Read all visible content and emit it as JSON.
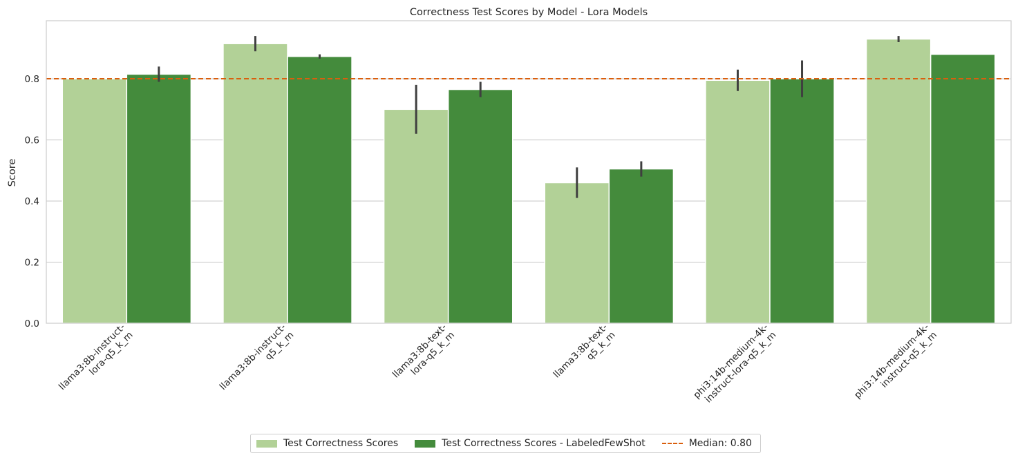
{
  "chart_data": {
    "type": "bar",
    "title": "Correctness Test Scores by Model - Lora Models",
    "xlabel": "",
    "ylabel": "Score",
    "ylim": [
      0,
      0.99
    ],
    "yticks": [
      "0.0",
      "0.2",
      "0.4",
      "0.6",
      "0.8"
    ],
    "grid": "horizontal",
    "categories": [
      [
        "llama3:8b-instruct-",
        "lora-q5_k_m"
      ],
      [
        "llama3:8b-instruct-",
        "q5_k_m"
      ],
      [
        "llama3:8b-text-",
        "lora-q5_k_m"
      ],
      [
        "llama3:8b-text-",
        "q5_k_m"
      ],
      [
        "phi3:14b-medium-4k-",
        "instruct-lora-q5_k_m"
      ],
      [
        "phi3:14b-medium-4k-",
        "instruct-q5_k_m"
      ]
    ],
    "series": [
      {
        "name": "Test Correctness Scores",
        "color": "#b2d197",
        "values": [
          0.8,
          0.915,
          0.7,
          0.46,
          0.795,
          0.93
        ],
        "errors": [
          null,
          [
            0.89,
            0.94
          ],
          [
            0.62,
            0.78
          ],
          [
            0.41,
            0.51
          ],
          [
            0.76,
            0.83
          ],
          [
            0.92,
            0.94
          ]
        ]
      },
      {
        "name": "Test Correctness Scores - LabeledFewShot",
        "color": "#448b3c",
        "values": [
          0.815,
          0.873,
          0.765,
          0.505,
          0.8,
          0.88
        ],
        "errors": [
          [
            0.79,
            0.84
          ],
          [
            0.866,
            0.88
          ],
          [
            0.74,
            0.79
          ],
          [
            0.48,
            0.53
          ],
          [
            0.74,
            0.86
          ],
          null
        ]
      }
    ],
    "reference_line": {
      "label": "Median: 0.80",
      "value": 0.8,
      "color": "#d95f0e"
    },
    "legend": {
      "position": "bottom-center"
    }
  }
}
